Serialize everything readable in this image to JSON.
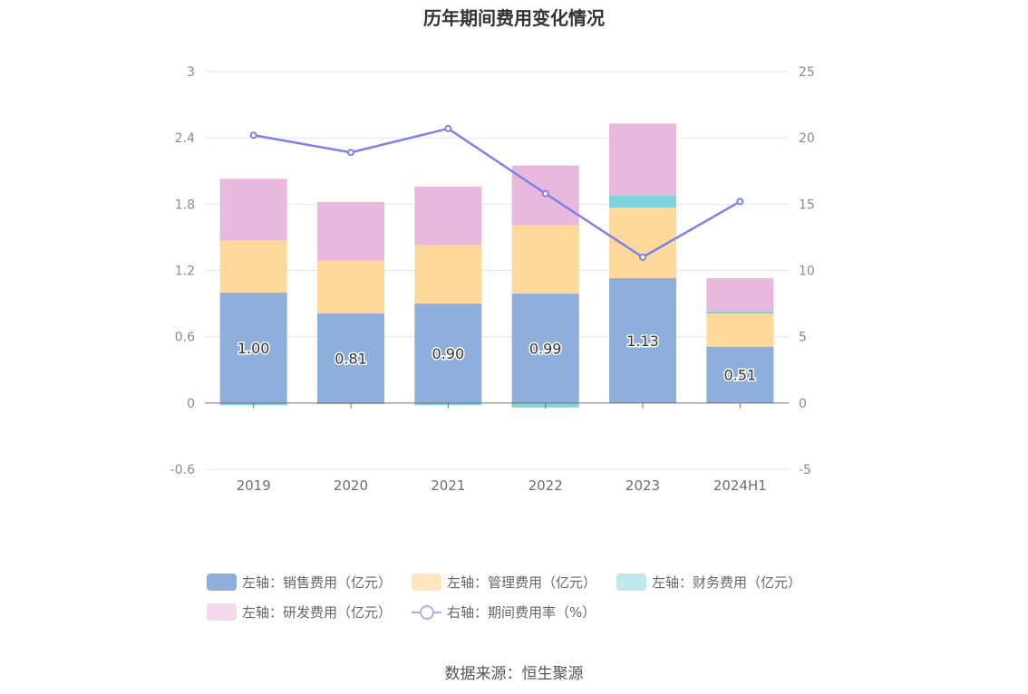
{
  "chart_data": {
    "type": "bar",
    "title": "历年期间费用变化情况",
    "categories": [
      "2019",
      "2020",
      "2021",
      "2022",
      "2023",
      "2024H1"
    ],
    "left_axis": {
      "min": -0.6,
      "max": 3,
      "ticks": [
        "-0.6",
        "0",
        "0.6",
        "1.2",
        "1.8",
        "2.4",
        "3"
      ]
    },
    "right_axis": {
      "min": -5,
      "max": 25,
      "ticks": [
        "-5",
        "0",
        "5",
        "10",
        "15",
        "20",
        "25"
      ]
    },
    "series": [
      {
        "name": "左轴：销售费用（亿元）",
        "axis": "left",
        "stack": true,
        "color": "#8eaedc",
        "values": [
          1.0,
          0.81,
          0.9,
          0.99,
          1.13,
          0.51
        ],
        "labels": [
          "1.00",
          "0.81",
          "0.90",
          "0.99",
          "1.13",
          "0.51"
        ]
      },
      {
        "name": "左轴：管理费用（亿元）",
        "axis": "left",
        "stack": true,
        "color": "#fed99b",
        "values": [
          0.47,
          0.48,
          0.53,
          0.62,
          0.64,
          0.3
        ]
      },
      {
        "name": "左轴：财务费用（亿元）",
        "axis": "left",
        "stack": true,
        "color": "#7ed3d9",
        "values": [
          -0.02,
          -0.01,
          -0.02,
          -0.04,
          0.11,
          0.02
        ]
      },
      {
        "name": "左轴：研发费用（亿元）",
        "axis": "left",
        "stack": true,
        "color": "#e8b9dc",
        "values": [
          0.56,
          0.53,
          0.53,
          0.54,
          0.65,
          0.3
        ]
      },
      {
        "name": "右轴：期间费用率（%）",
        "axis": "right",
        "type": "line",
        "color": "#7c81ec",
        "values": [
          20.2,
          18.9,
          20.7,
          15.8,
          11.0,
          15.2
        ]
      }
    ]
  },
  "legend": {
    "items": [
      {
        "label": "左轴：销售费用（亿元）",
        "color": "#8eaedc"
      },
      {
        "label": "左轴：管理费用（亿元）",
        "color": "#ffe6c0"
      },
      {
        "label": "左轴：财务费用（亿元）",
        "color": "#bfe8ec"
      },
      {
        "label": "左轴：研发费用（亿元）",
        "color": "#f2d9ec"
      },
      {
        "label": "右轴：期间费用率（%）"
      }
    ]
  },
  "source": "数据来源：恒生聚源"
}
